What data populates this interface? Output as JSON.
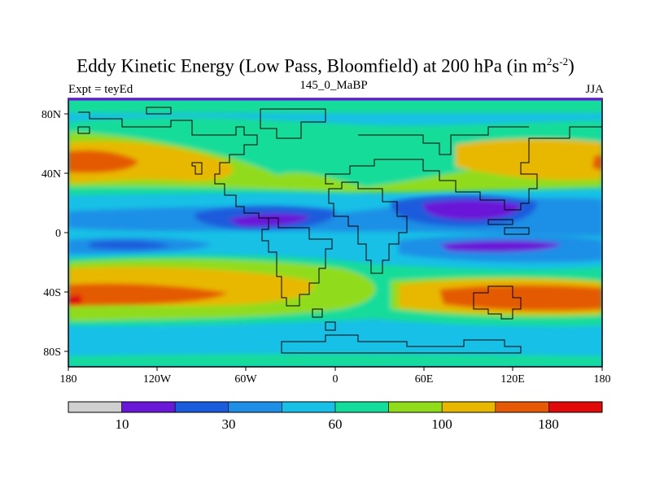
{
  "title": {
    "main": "Eddy Kinetic Energy (Low Pass, Bloomfield) at 200 hPa (in m",
    "sup1": "2",
    "mid": "s",
    "sup2": "-2",
    "end": ")"
  },
  "subtitle": {
    "left": "Expt = teyEd",
    "center": "145_0_MaBP",
    "right": "JJA"
  },
  "axes": {
    "x_ticks": [
      "180",
      "120W",
      "60W",
      "0",
      "60E",
      "120E",
      "180"
    ],
    "y_ticks": [
      "80N",
      "40N",
      "0",
      "40S",
      "80S"
    ]
  },
  "colorbar": {
    "labels": [
      "10",
      "30",
      "60",
      "100",
      "180"
    ],
    "colors": [
      "#d0d0d0",
      "#6a18d8",
      "#1a5cdc",
      "#1f8fe6",
      "#18c0e6",
      "#14dc9a",
      "#90dc1a",
      "#e8b800",
      "#e45a06",
      "#e00a0a"
    ]
  },
  "colors": {
    "frame_top": "#6a18d8",
    "coastline": "#000000"
  }
}
